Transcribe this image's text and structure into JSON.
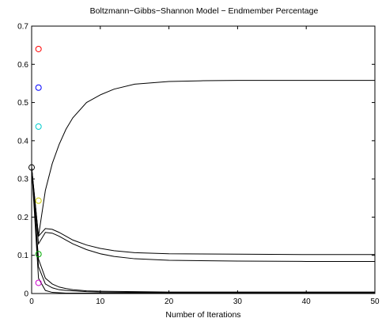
{
  "chart_data": {
    "type": "line",
    "title": "Boltzmann−Gibbs−Shannon Model − Endmember Percentage",
    "xlabel": "Number of Iterations",
    "ylabel": "",
    "xlim": [
      0,
      50
    ],
    "ylim": [
      0,
      0.7
    ],
    "xticks": [
      0,
      10,
      20,
      30,
      40,
      50
    ],
    "yticks": [
      0,
      0.1,
      0.2,
      0.3,
      0.4,
      0.5,
      0.6,
      0.7
    ],
    "grid": false,
    "series": [
      {
        "color": "#000000",
        "x": [
          0,
          1,
          2,
          3,
          4,
          5,
          6,
          8,
          10,
          12,
          15,
          20,
          25,
          30,
          35,
          40,
          45,
          50
        ],
        "y": [
          0.33,
          0.15,
          0.27,
          0.34,
          0.39,
          0.43,
          0.46,
          0.5,
          0.52,
          0.535,
          0.548,
          0.555,
          0.557,
          0.558,
          0.558,
          0.558,
          0.558,
          0.558
        ]
      },
      {
        "color": "#000000",
        "x": [
          0,
          1,
          2,
          3,
          4,
          5,
          6,
          8,
          10,
          12,
          15,
          20,
          30,
          40,
          50
        ],
        "y": [
          0.33,
          0.15,
          0.17,
          0.168,
          0.16,
          0.15,
          0.14,
          0.127,
          0.118,
          0.112,
          0.107,
          0.104,
          0.103,
          0.102,
          0.102
        ]
      },
      {
        "color": "#000000",
        "x": [
          0,
          1,
          2,
          3,
          4,
          5,
          6,
          8,
          10,
          12,
          15,
          20,
          30,
          40,
          50
        ],
        "y": [
          0.33,
          0.13,
          0.16,
          0.158,
          0.15,
          0.14,
          0.13,
          0.115,
          0.104,
          0.097,
          0.091,
          0.087,
          0.085,
          0.084,
          0.084
        ]
      },
      {
        "color": "#000000",
        "x": [
          0,
          1,
          2,
          3,
          4,
          5,
          6,
          8,
          10,
          15,
          20,
          30,
          40,
          50
        ],
        "y": [
          0.33,
          0.09,
          0.04,
          0.025,
          0.017,
          0.013,
          0.01,
          0.007,
          0.006,
          0.005,
          0.004,
          0.004,
          0.004,
          0.004
        ]
      },
      {
        "color": "#000000",
        "x": [
          0,
          1,
          2,
          3,
          4,
          5,
          6,
          8,
          10,
          15,
          20,
          30,
          40,
          50
        ],
        "y": [
          0.33,
          0.07,
          0.025,
          0.015,
          0.01,
          0.008,
          0.007,
          0.005,
          0.004,
          0.003,
          0.003,
          0.002,
          0.002,
          0.002
        ]
      },
      {
        "color": "#000000",
        "x": [
          0,
          1,
          2,
          3,
          4,
          5,
          6,
          8,
          10,
          15,
          20,
          30,
          40,
          50
        ],
        "y": [
          0.33,
          0.04,
          0.008,
          0.003,
          0.002,
          0.001,
          0.001,
          0.001,
          0.001,
          0.001,
          0.001,
          0.001,
          0.001,
          0.001
        ]
      }
    ],
    "markers": [
      {
        "x": 0,
        "y": 0.33,
        "color": "#000000"
      },
      {
        "x": 1,
        "y": 0.64,
        "color": "#ff0000"
      },
      {
        "x": 1,
        "y": 0.539,
        "color": "#0000ff"
      },
      {
        "x": 1,
        "y": 0.437,
        "color": "#00cccc"
      },
      {
        "x": 1,
        "y": 0.243,
        "color": "#cccc00"
      },
      {
        "x": 1,
        "y": 0.103,
        "color": "#00aa00"
      },
      {
        "x": 1,
        "y": 0.028,
        "color": "#cc00cc"
      }
    ]
  }
}
